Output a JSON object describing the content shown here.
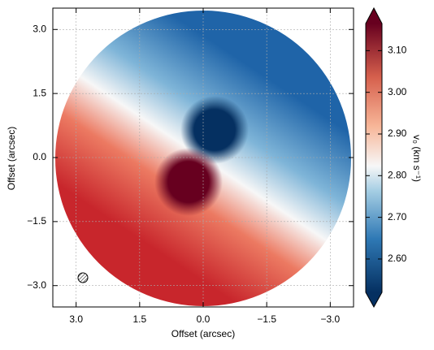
{
  "chart_data": {
    "type": "image",
    "xlabel": "Offset (arcsec)",
    "ylabel": "Offset (arcsec)",
    "xlim": [
      3.55,
      -3.55
    ],
    "ylim": [
      -3.5,
      3.5
    ],
    "xticks": [
      {
        "value": 3,
        "label": "3.0"
      },
      {
        "value": 1.5,
        "label": "1.5"
      },
      {
        "value": 0,
        "label": "0.0"
      },
      {
        "value": -1.5,
        "label": "−1.5"
      },
      {
        "value": -3,
        "label": "−3.0"
      }
    ],
    "yticks": [
      {
        "value": -3,
        "label": "−3.0"
      },
      {
        "value": -1.5,
        "label": "−1.5"
      },
      {
        "value": 0,
        "label": "0.0"
      },
      {
        "value": 1.5,
        "label": "1.5"
      },
      {
        "value": 3,
        "label": "3.0"
      }
    ],
    "grid": true,
    "colorbar": {
      "label": "v₀ (km s⁻¹)",
      "clim": [
        2.52,
        3.165
      ],
      "ticks": [
        {
          "value": 2.6,
          "label": "2.60"
        },
        {
          "value": 2.7,
          "label": "2.70"
        },
        {
          "value": 2.8,
          "label": "2.80"
        },
        {
          "value": 2.9,
          "label": "2.90"
        },
        {
          "value": 3.0,
          "label": "3.00"
        },
        {
          "value": 3.1,
          "label": "3.10"
        }
      ]
    }
  }
}
